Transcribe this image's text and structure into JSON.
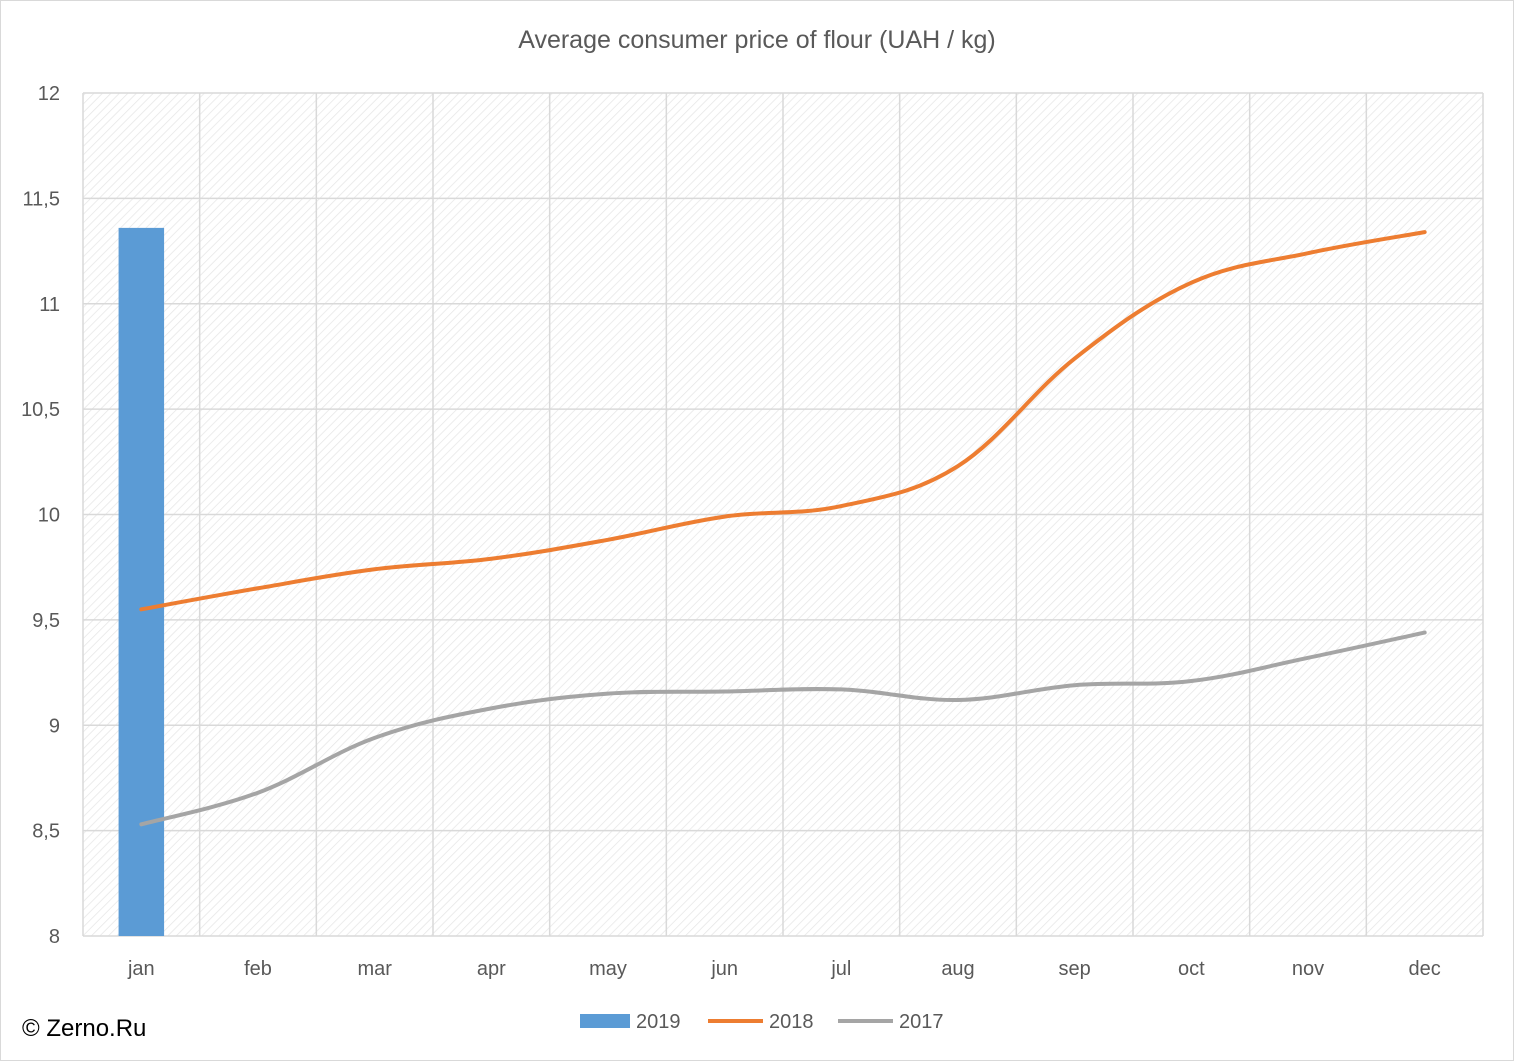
{
  "chart_data": {
    "type": "bar+line",
    "title": "Average consumer price of flour (UAH / kg)",
    "xlabel": "",
    "ylabel": "",
    "categories": [
      "jan",
      "feb",
      "mar",
      "apr",
      "may",
      "jun",
      "jul",
      "aug",
      "sep",
      "oct",
      "nov",
      "dec"
    ],
    "ylim": [
      8,
      12
    ],
    "yticks": [
      "8",
      "8,5",
      "9",
      "9,5",
      "10",
      "10,5",
      "11",
      "11,5",
      "12"
    ],
    "yticks_values": [
      8,
      8.5,
      9,
      9.5,
      10,
      10.5,
      11,
      11.5,
      12
    ],
    "grid": true,
    "legend_position": "bottom",
    "series": [
      {
        "name": "2019",
        "kind": "bar",
        "color": "#5b9bd5",
        "values": [
          11.36,
          null,
          null,
          null,
          null,
          null,
          null,
          null,
          null,
          null,
          null,
          null
        ]
      },
      {
        "name": "2018",
        "kind": "line",
        "color": "#ed7d31",
        "values": [
          9.55,
          9.65,
          9.74,
          9.79,
          9.88,
          9.99,
          10.04,
          10.23,
          10.74,
          11.1,
          11.24,
          11.34
        ]
      },
      {
        "name": "2017",
        "kind": "line",
        "color": "#a5a5a5",
        "values": [
          8.53,
          8.68,
          8.94,
          9.08,
          9.15,
          9.16,
          9.17,
          9.12,
          9.19,
          9.21,
          9.32,
          9.44
        ]
      }
    ]
  },
  "credit": "© Zerno.Ru"
}
